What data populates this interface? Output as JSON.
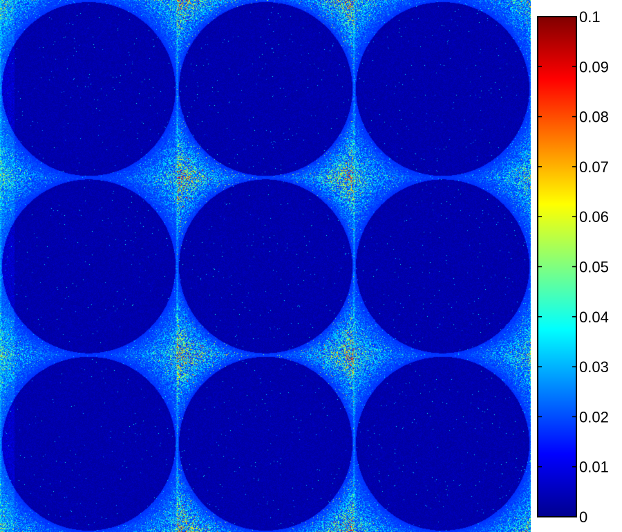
{
  "chart_data": {
    "type": "heatmap",
    "colormap": "jet",
    "grid": "off",
    "legend": "right",
    "panels": {
      "rows": 3,
      "cols": 3
    },
    "colorbar": {
      "range": [
        0,
        0.1
      ],
      "ticks": [
        0,
        0.01,
        0.02,
        0.03,
        0.04,
        0.05,
        0.06,
        0.07,
        0.08,
        0.09,
        0.1
      ],
      "tick_labels": [
        "0",
        "0.01",
        "0.02",
        "0.03",
        "0.04",
        "0.05",
        "0.06",
        "0.07",
        "0.08",
        "0.09",
        "0.1"
      ]
    },
    "background_level": 0.005,
    "hotspot_peak": 0.09
  }
}
